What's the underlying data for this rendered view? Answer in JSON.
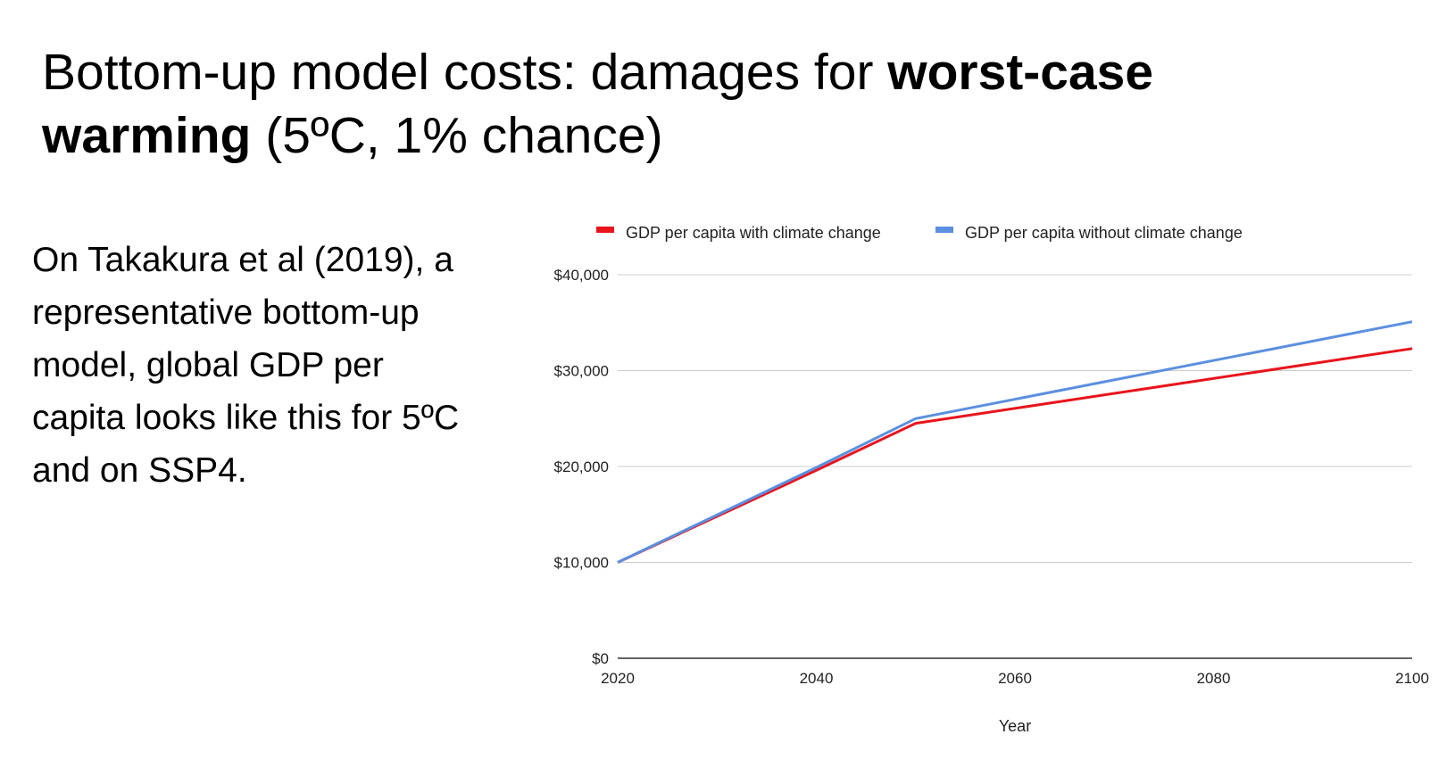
{
  "slide": {
    "title_part1": "Bottom-up model costs: damages for ",
    "title_bold1": "worst-case",
    "title_bold2": "warming",
    "title_part2": " (5ºC, 1% chance)",
    "body": "On Takakura et al (2019), a representative bottom-up model, global GDP per capita looks like this for 5ºC and on SSP4."
  },
  "chart_data": {
    "type": "line",
    "title": "",
    "xlabel": "Year",
    "ylabel": "",
    "x": [
      2020,
      2040,
      2050,
      2100
    ],
    "xlim": [
      2020,
      2100
    ],
    "ylim": [
      0,
      40000
    ],
    "xticks": [
      "2020",
      "2040",
      "2060",
      "2080",
      "2100"
    ],
    "yticks": [
      "$0",
      "$10,000",
      "$20,000",
      "$30,000",
      "$40,000"
    ],
    "grid": true,
    "legend_position": "top",
    "series": [
      {
        "name": "GDP per capita with climate change",
        "color": "#e8141c",
        "values": [
          10000,
          19600,
          24500,
          32300
        ]
      },
      {
        "name": "GDP per capita without climate change",
        "color": "#5b8fe0",
        "values": [
          10000,
          19900,
          25000,
          35100
        ]
      }
    ]
  }
}
